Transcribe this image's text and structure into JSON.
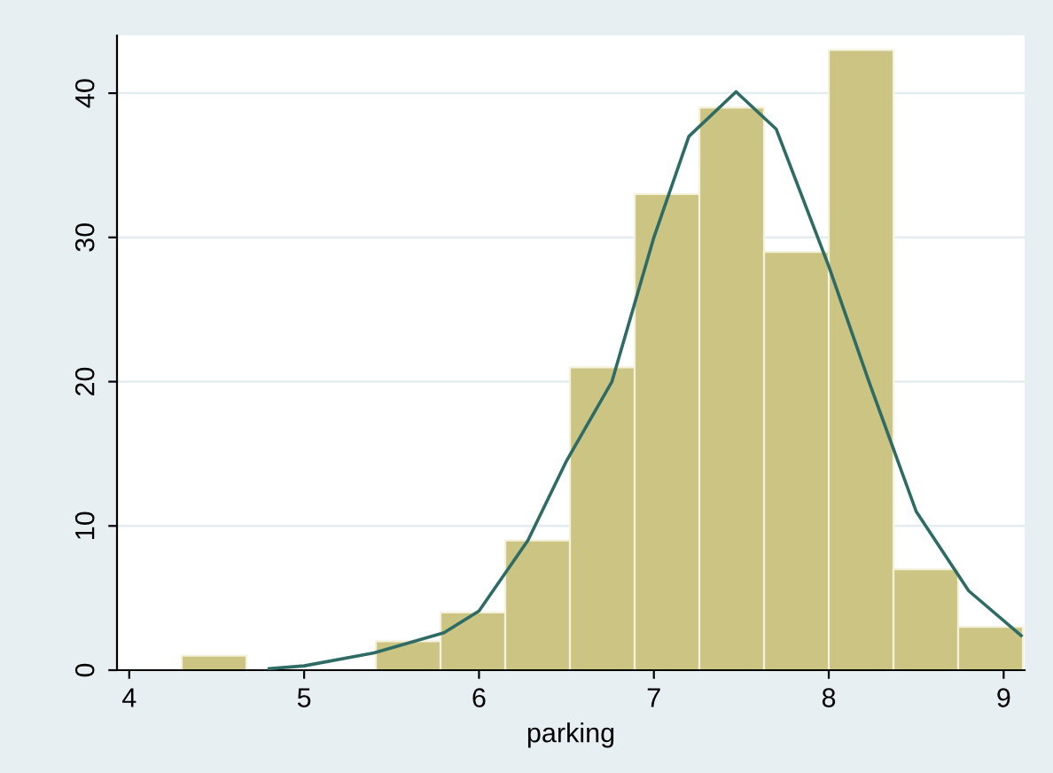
{
  "chart_data": {
    "type": "histogram",
    "xlabel": "parking",
    "bins": [
      4.3,
      4.67,
      5.04,
      5.41,
      5.78,
      6.15,
      6.52,
      6.89,
      7.26,
      7.63,
      8.0,
      8.37,
      8.74,
      9.11
    ],
    "values": [
      1,
      0,
      0,
      2,
      4,
      9,
      21,
      33,
      39,
      29,
      43,
      7,
      3
    ],
    "color": "#cbc483",
    "series": [
      {
        "type": "line",
        "color": "#2e6b64",
        "x": [
          4.8,
          5.0,
          5.4,
          5.8,
          6.0,
          6.28,
          6.5,
          6.76,
          7.0,
          7.2,
          7.47,
          7.7,
          8.0,
          8.23,
          8.5,
          8.8,
          9.1
        ],
        "values": [
          0.1,
          0.3,
          1.2,
          2.6,
          4.1,
          9,
          14.5,
          20,
          30,
          37,
          40.1,
          37.5,
          28,
          20,
          11,
          5.5,
          2.4
        ]
      }
    ],
    "xlim": [
      3.93,
      9.12
    ],
    "ylim": [
      0,
      44
    ],
    "xticks": [
      4,
      5,
      6,
      7,
      8,
      9
    ],
    "yticks": [
      0,
      10,
      20,
      30,
      40
    ],
    "grid": "y",
    "legend": false
  }
}
